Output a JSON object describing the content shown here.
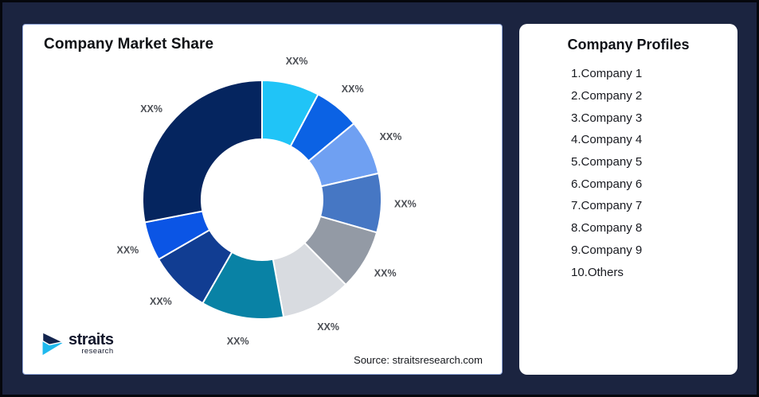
{
  "page": {
    "background_color": "#1B2440",
    "card_color": "#FFFFFF",
    "card_border_color": "#8AA0D6"
  },
  "chart_card": {
    "title": "Company Market Share",
    "source_text": "Source: straitsresearch.com",
    "logo": {
      "brand": "straits",
      "sub": "research",
      "mark_navy": "#13244E",
      "mark_cyan": "#1FB9EE"
    }
  },
  "chart_data": {
    "type": "pie",
    "subtype": "donut",
    "title": "Company Market Share",
    "legend_position": "none",
    "start_angle": "top",
    "direction": "clockwise",
    "hole_radius_ratio": 0.51,
    "data_labels_text": "XX%",
    "slices": [
      {
        "name": "Company 1",
        "label": "XX%",
        "value": 7.8,
        "color": "#20C4F7"
      },
      {
        "name": "Company 2",
        "label": "XX%",
        "value": 6.2,
        "color": "#0B62E4"
      },
      {
        "name": "Company 3",
        "label": "XX%",
        "value": 7.5,
        "color": "#6FA0F2"
      },
      {
        "name": "Company 4",
        "label": "XX%",
        "value": 8.0,
        "color": "#4677C4"
      },
      {
        "name": "Company 5",
        "label": "XX%",
        "value": 8.2,
        "color": "#939AA5"
      },
      {
        "name": "Company 6",
        "label": "XX%",
        "value": 9.5,
        "color": "#D8DBE0"
      },
      {
        "name": "Company 7",
        "label": "XX%",
        "value": 11.2,
        "color": "#0982A5"
      },
      {
        "name": "Company 8",
        "label": "XX%",
        "value": 8.4,
        "color": "#113D92"
      },
      {
        "name": "Company 9",
        "label": "XX%",
        "value": 5.3,
        "color": "#0B55E5"
      },
      {
        "name": "Others",
        "label": "XX%",
        "value": 28.1,
        "color": "#05255F"
      }
    ]
  },
  "profiles_card": {
    "title": "Company Profiles",
    "items": [
      "1.Company 1",
      "2.Company 2",
      "3.Company 3",
      "4.Company 4",
      "5.Company 5",
      "6.Company 6",
      "7.Company 7",
      "8.Company 8",
      "9.Company 9",
      "10.Others"
    ]
  }
}
